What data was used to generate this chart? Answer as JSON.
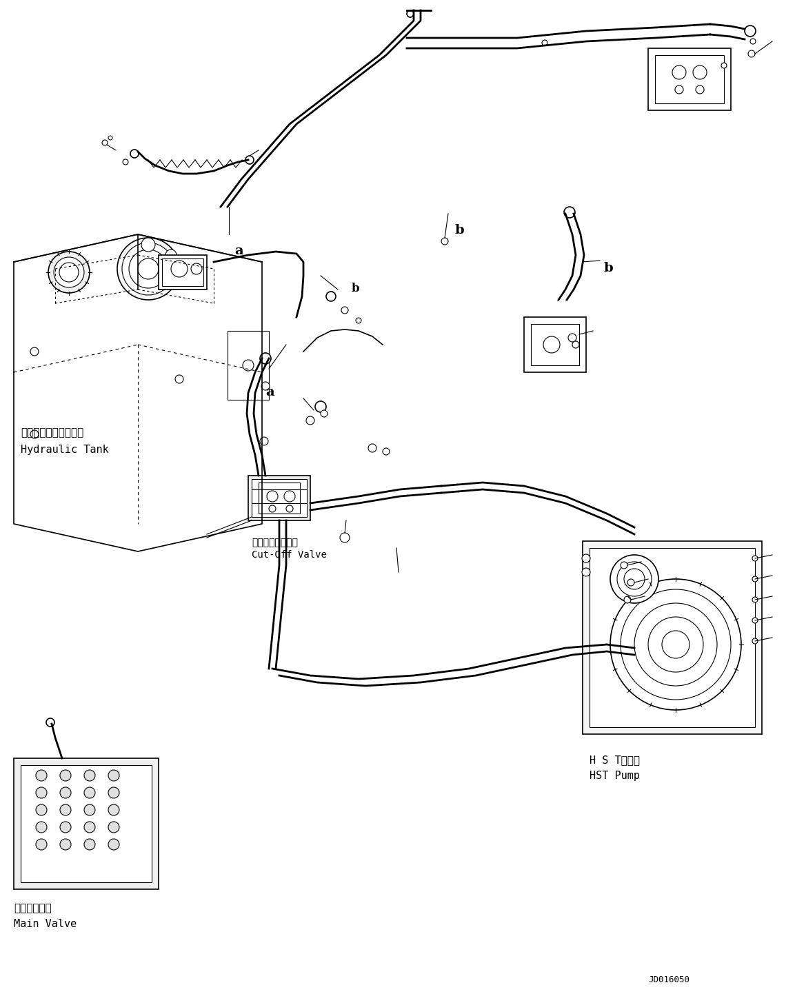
{
  "title": "",
  "background_color": "#ffffff",
  "figsize": [
    11.53,
    14.58
  ],
  "dpi": 100,
  "labels": {
    "hydraulic_tank_jp": "ハイドロリックタンク",
    "hydraulic_tank_en": "Hydraulic Tank",
    "cut_off_valve_jp": "カットオフバルブ",
    "cut_off_valve_en": "Cut-Off Valve",
    "hst_pump_jp": "H S Tポンプ",
    "hst_pump_en": "HST Pump",
    "main_valve_jp": "メインバルブ",
    "main_valve_en": "Main Valve",
    "code": "JD016050",
    "label_a1": "a",
    "label_a2": "a",
    "label_b1": "b",
    "label_b2": "b"
  },
  "colors": {
    "line": "#000000",
    "background": "#ffffff",
    "text": "#000000"
  }
}
